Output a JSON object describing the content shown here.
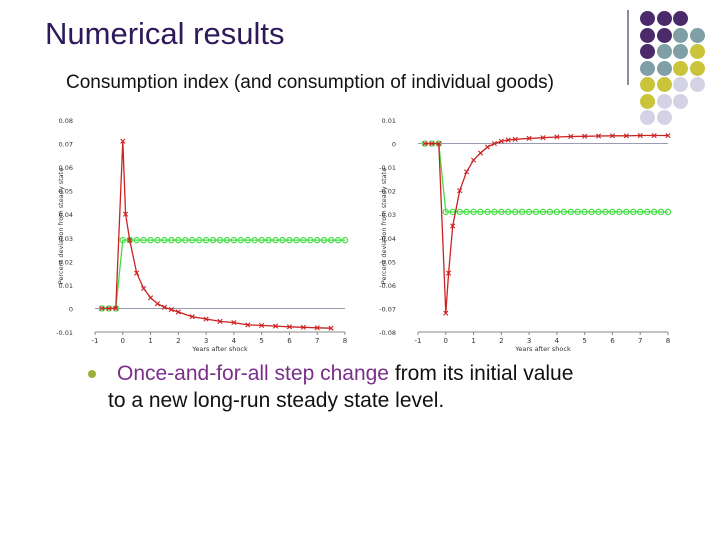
{
  "slide": {
    "title": "Numerical results",
    "subtitle": "Consumption index (and consumption of individual goods)",
    "bullet": {
      "highlight": "Once-and-for-all step change",
      "rest_line1": " from its initial value",
      "rest_line2": "to a new long-run steady state level."
    }
  },
  "colors": {
    "title": "#2e1a5a",
    "highlight": "#7a2f8a",
    "red_series": "#cc2222",
    "green_series": "#44dd44",
    "deco_purple": "#4a2a6a",
    "deco_teal": "#7fa0a6",
    "deco_olive": "#c9c43a",
    "deco_lavender": "#d4d3e6"
  },
  "decoration": {
    "dot_grid": [
      [
        "deco_purple",
        "deco_purple",
        "deco_purple",
        "none"
      ],
      [
        "deco_purple",
        "deco_purple",
        "deco_teal",
        "deco_teal"
      ],
      [
        "deco_purple",
        "deco_teal",
        "deco_teal",
        "deco_olive"
      ],
      [
        "deco_teal",
        "deco_teal",
        "deco_olive",
        "deco_olive"
      ],
      [
        "deco_olive",
        "deco_olive",
        "deco_lavender",
        "deco_lavender"
      ],
      [
        "deco_olive",
        "deco_lavender",
        "deco_lavender",
        "none"
      ],
      [
        "deco_lavender",
        "deco_lavender",
        "none",
        "none"
      ]
    ]
  },
  "chart_data": [
    {
      "type": "line",
      "xlabel": "Years after shock",
      "ylabel": "Percent deviation from steady state",
      "xlim": [
        -1,
        8
      ],
      "ylim": [
        -0.01,
        0.08
      ],
      "xticks": [
        "-1",
        "0",
        "1",
        "2",
        "3",
        "4",
        "5",
        "6",
        "7",
        "8"
      ],
      "yticks": [
        "-0.01",
        "0",
        "0.01",
        "0.02",
        "0.03",
        "0.04",
        "0.05",
        "0.06",
        "0.07",
        "0.08"
      ],
      "series": [
        {
          "color": "red_series",
          "marker": "x",
          "x": [
            -0.75,
            -0.5,
            -0.25,
            0,
            0.1,
            0.25,
            0.5,
            0.75,
            1,
            1.25,
            1.5,
            1.75,
            2,
            2.5,
            3,
            3.5,
            4,
            4.5,
            5,
            5.5,
            6,
            6.5,
            7,
            7.5
          ],
          "y": [
            0,
            0,
            0,
            0.071,
            0.04,
            0.029,
            0.015,
            0.0085,
            0.0045,
            0.002,
            0.0005,
            -0.0005,
            -0.0015,
            -0.0035,
            -0.0045,
            -0.0055,
            -0.006,
            -0.007,
            -0.0072,
            -0.0075,
            -0.0078,
            -0.008,
            -0.0082,
            -0.0084
          ]
        },
        {
          "color": "green_series",
          "marker": "o",
          "x": [
            -0.75,
            -0.5,
            -0.25,
            0,
            0.25,
            0.5,
            0.75,
            1,
            1.25,
            1.5,
            1.75,
            2,
            2.25,
            2.5,
            2.75,
            3,
            3.25,
            3.5,
            3.75,
            4,
            4.25,
            4.5,
            4.75,
            5,
            5.25,
            5.5,
            5.75,
            6,
            6.25,
            6.5,
            6.75,
            7,
            7.25,
            7.5,
            7.75,
            8
          ],
          "y": [
            0,
            0,
            0,
            0.029,
            0.029,
            0.029,
            0.029,
            0.029,
            0.029,
            0.029,
            0.029,
            0.029,
            0.029,
            0.029,
            0.029,
            0.029,
            0.029,
            0.029,
            0.029,
            0.029,
            0.029,
            0.029,
            0.029,
            0.029,
            0.029,
            0.029,
            0.029,
            0.029,
            0.029,
            0.029,
            0.029,
            0.029,
            0.029,
            0.029,
            0.029,
            0.029
          ]
        }
      ]
    },
    {
      "type": "line",
      "xlabel": "Years after shock",
      "ylabel": "Percent deviation from steady state",
      "xlim": [
        -1,
        8
      ],
      "ylim": [
        -0.08,
        0.01
      ],
      "xticks": [
        "-1",
        "0",
        "1",
        "2",
        "3",
        "4",
        "5",
        "6",
        "7",
        "8"
      ],
      "yticks": [
        "-0.08",
        "-0.07",
        "-0.06",
        "-0.05",
        "-0.04",
        "-0.03",
        "-0.02",
        "-0.01",
        "0",
        "0.01"
      ],
      "series": [
        {
          "color": "red_series",
          "marker": "x",
          "x": [
            -0.75,
            -0.5,
            -0.25,
            0,
            0.1,
            0.25,
            0.5,
            0.75,
            1,
            1.25,
            1.5,
            1.75,
            2,
            2.25,
            2.5,
            3,
            3.5,
            4,
            4.5,
            5,
            5.5,
            6,
            6.5,
            7,
            7.5,
            8
          ],
          "y": [
            0,
            0,
            0,
            -0.072,
            -0.055,
            -0.035,
            -0.02,
            -0.012,
            -0.007,
            -0.004,
            -0.0015,
            0,
            0.001,
            0.0015,
            0.0018,
            0.0022,
            0.0025,
            0.0028,
            0.003,
            0.0031,
            0.0032,
            0.0033,
            0.0033,
            0.0034,
            0.0034,
            0.0034
          ]
        },
        {
          "color": "green_series",
          "marker": "o",
          "x": [
            -0.75,
            -0.5,
            -0.25,
            0,
            0.25,
            0.5,
            0.75,
            1,
            1.25,
            1.5,
            1.75,
            2,
            2.25,
            2.5,
            2.75,
            3,
            3.25,
            3.5,
            3.75,
            4,
            4.25,
            4.5,
            4.75,
            5,
            5.25,
            5.5,
            5.75,
            6,
            6.25,
            6.5,
            6.75,
            7,
            7.25,
            7.5,
            7.75,
            8
          ],
          "y": [
            0,
            0,
            0,
            -0.029,
            -0.029,
            -0.029,
            -0.029,
            -0.029,
            -0.029,
            -0.029,
            -0.029,
            -0.029,
            -0.029,
            -0.029,
            -0.029,
            -0.029,
            -0.029,
            -0.029,
            -0.029,
            -0.029,
            -0.029,
            -0.029,
            -0.029,
            -0.029,
            -0.029,
            -0.029,
            -0.029,
            -0.029,
            -0.029,
            -0.029,
            -0.029,
            -0.029,
            -0.029,
            -0.029,
            -0.029,
            -0.029
          ]
        }
      ]
    }
  ]
}
